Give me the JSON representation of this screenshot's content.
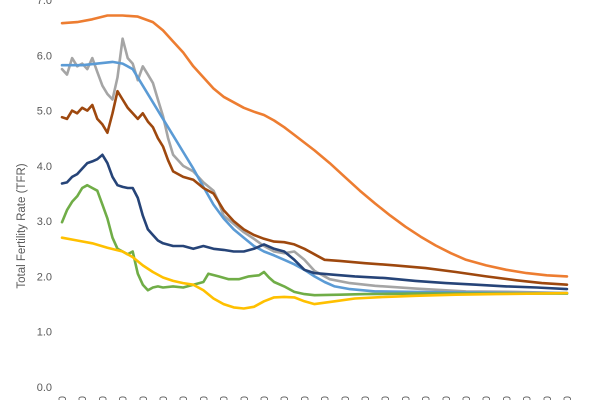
{
  "chart_data": {
    "type": "line",
    "title": "",
    "xlabel": "",
    "ylabel": "Total Fertility Rate (TFR)",
    "ylim": [
      0,
      7
    ],
    "yticks": [
      "0.0",
      "1.0",
      "2.0",
      "3.0",
      "4.0",
      "5.0",
      "6.0",
      "7.0"
    ],
    "xtick_count": 26,
    "xtick_glyph": "0",
    "grid": false,
    "legend": "none",
    "n_points": 101,
    "series": [
      {
        "color": "#ed7d31",
        "points": [
          [
            0,
            6.58
          ],
          [
            3,
            6.6
          ],
          [
            6,
            6.65
          ],
          [
            9,
            6.72
          ],
          [
            12,
            6.72
          ],
          [
            15,
            6.7
          ],
          [
            18,
            6.6
          ],
          [
            20,
            6.45
          ],
          [
            22,
            6.25
          ],
          [
            24,
            6.05
          ],
          [
            26,
            5.8
          ],
          [
            28,
            5.6
          ],
          [
            30,
            5.4
          ],
          [
            32,
            5.25
          ],
          [
            34,
            5.15
          ],
          [
            36,
            5.05
          ],
          [
            38,
            4.98
          ],
          [
            40,
            4.92
          ],
          [
            42,
            4.82
          ],
          [
            44,
            4.7
          ],
          [
            46,
            4.56
          ],
          [
            48,
            4.42
          ],
          [
            50,
            4.28
          ],
          [
            53,
            4.05
          ],
          [
            56,
            3.8
          ],
          [
            59,
            3.55
          ],
          [
            62,
            3.32
          ],
          [
            65,
            3.1
          ],
          [
            68,
            2.9
          ],
          [
            71,
            2.72
          ],
          [
            74,
            2.56
          ],
          [
            77,
            2.42
          ],
          [
            80,
            2.3
          ],
          [
            84,
            2.2
          ],
          [
            88,
            2.12
          ],
          [
            92,
            2.06
          ],
          [
            96,
            2.02
          ],
          [
            100,
            2.0
          ]
        ]
      },
      {
        "color": "#a5a5a5",
        "points": [
          [
            0,
            5.75
          ],
          [
            1,
            5.65
          ],
          [
            2,
            5.95
          ],
          [
            3,
            5.8
          ],
          [
            4,
            5.85
          ],
          [
            5,
            5.75
          ],
          [
            6,
            5.95
          ],
          [
            7,
            5.7
          ],
          [
            8,
            5.45
          ],
          [
            9,
            5.3
          ],
          [
            10,
            5.2
          ],
          [
            11,
            5.6
          ],
          [
            12,
            6.3
          ],
          [
            13,
            5.95
          ],
          [
            14,
            5.85
          ],
          [
            15,
            5.55
          ],
          [
            16,
            5.8
          ],
          [
            17,
            5.65
          ],
          [
            18,
            5.5
          ],
          [
            19,
            5.2
          ],
          [
            20,
            4.9
          ],
          [
            21,
            4.5
          ],
          [
            22,
            4.2
          ],
          [
            24,
            4.0
          ],
          [
            26,
            3.9
          ],
          [
            28,
            3.7
          ],
          [
            30,
            3.55
          ],
          [
            31,
            3.35
          ],
          [
            32,
            3.1
          ],
          [
            34,
            2.95
          ],
          [
            36,
            2.8
          ],
          [
            38,
            2.68
          ],
          [
            40,
            2.55
          ],
          [
            42,
            2.45
          ],
          [
            44,
            2.42
          ],
          [
            46,
            2.45
          ],
          [
            48,
            2.3
          ],
          [
            50,
            2.1
          ],
          [
            53,
            1.95
          ],
          [
            57,
            1.88
          ],
          [
            62,
            1.83
          ],
          [
            70,
            1.78
          ],
          [
            80,
            1.73
          ],
          [
            90,
            1.72
          ],
          [
            100,
            1.7
          ]
        ]
      },
      {
        "color": "#5b9bd5",
        "points": [
          [
            0,
            5.82
          ],
          [
            4,
            5.82
          ],
          [
            7,
            5.85
          ],
          [
            10,
            5.88
          ],
          [
            12,
            5.85
          ],
          [
            14,
            5.75
          ],
          [
            16,
            5.45
          ],
          [
            18,
            5.15
          ],
          [
            20,
            4.85
          ],
          [
            22,
            4.55
          ],
          [
            24,
            4.25
          ],
          [
            26,
            3.95
          ],
          [
            28,
            3.62
          ],
          [
            30,
            3.3
          ],
          [
            32,
            3.05
          ],
          [
            34,
            2.85
          ],
          [
            36,
            2.7
          ],
          [
            38,
            2.55
          ],
          [
            40,
            2.45
          ],
          [
            42,
            2.38
          ],
          [
            44,
            2.3
          ],
          [
            46,
            2.22
          ],
          [
            48,
            2.12
          ],
          [
            50,
            2.0
          ],
          [
            52,
            1.9
          ],
          [
            54,
            1.82
          ],
          [
            57,
            1.77
          ],
          [
            62,
            1.73
          ],
          [
            70,
            1.72
          ],
          [
            80,
            1.71
          ],
          [
            90,
            1.7
          ],
          [
            100,
            1.7
          ]
        ]
      },
      {
        "color": "#9e480e",
        "points": [
          [
            0,
            4.88
          ],
          [
            1,
            4.85
          ],
          [
            2,
            5.0
          ],
          [
            3,
            4.95
          ],
          [
            4,
            5.05
          ],
          [
            5,
            5.0
          ],
          [
            6,
            5.1
          ],
          [
            7,
            4.85
          ],
          [
            8,
            4.75
          ],
          [
            9,
            4.6
          ],
          [
            10,
            4.95
          ],
          [
            11,
            5.35
          ],
          [
            12,
            5.2
          ],
          [
            13,
            5.05
          ],
          [
            14,
            4.95
          ],
          [
            15,
            4.85
          ],
          [
            16,
            4.95
          ],
          [
            17,
            4.8
          ],
          [
            18,
            4.7
          ],
          [
            19,
            4.5
          ],
          [
            20,
            4.35
          ],
          [
            21,
            4.1
          ],
          [
            22,
            3.9
          ],
          [
            24,
            3.8
          ],
          [
            26,
            3.75
          ],
          [
            28,
            3.6
          ],
          [
            30,
            3.5
          ],
          [
            32,
            3.2
          ],
          [
            34,
            3.0
          ],
          [
            36,
            2.85
          ],
          [
            38,
            2.75
          ],
          [
            40,
            2.68
          ],
          [
            42,
            2.63
          ],
          [
            44,
            2.62
          ],
          [
            46,
            2.58
          ],
          [
            48,
            2.5
          ],
          [
            50,
            2.4
          ],
          [
            52,
            2.3
          ],
          [
            55,
            2.28
          ],
          [
            60,
            2.24
          ],
          [
            66,
            2.2
          ],
          [
            72,
            2.15
          ],
          [
            78,
            2.08
          ],
          [
            84,
            2.0
          ],
          [
            90,
            1.93
          ],
          [
            95,
            1.88
          ],
          [
            100,
            1.85
          ]
        ]
      },
      {
        "color": "#264478",
        "points": [
          [
            0,
            3.68
          ],
          [
            1,
            3.7
          ],
          [
            2,
            3.8
          ],
          [
            3,
            3.85
          ],
          [
            4,
            3.95
          ],
          [
            5,
            4.05
          ],
          [
            6,
            4.08
          ],
          [
            7,
            4.12
          ],
          [
            8,
            4.2
          ],
          [
            9,
            4.05
          ],
          [
            10,
            3.8
          ],
          [
            11,
            3.65
          ],
          [
            12,
            3.62
          ],
          [
            13,
            3.6
          ],
          [
            14,
            3.6
          ],
          [
            15,
            3.42
          ],
          [
            16,
            3.1
          ],
          [
            17,
            2.85
          ],
          [
            18,
            2.75
          ],
          [
            19,
            2.65
          ],
          [
            20,
            2.6
          ],
          [
            22,
            2.55
          ],
          [
            24,
            2.55
          ],
          [
            26,
            2.5
          ],
          [
            28,
            2.55
          ],
          [
            30,
            2.5
          ],
          [
            32,
            2.48
          ],
          [
            34,
            2.45
          ],
          [
            36,
            2.45
          ],
          [
            38,
            2.5
          ],
          [
            40,
            2.58
          ],
          [
            42,
            2.5
          ],
          [
            44,
            2.45
          ],
          [
            46,
            2.3
          ],
          [
            48,
            2.12
          ],
          [
            50,
            2.06
          ],
          [
            54,
            2.03
          ],
          [
            58,
            2.0
          ],
          [
            64,
            1.97
          ],
          [
            70,
            1.92
          ],
          [
            76,
            1.88
          ],
          [
            82,
            1.85
          ],
          [
            88,
            1.82
          ],
          [
            94,
            1.8
          ],
          [
            100,
            1.77
          ]
        ]
      },
      {
        "color": "#70ad47",
        "points": [
          [
            0,
            2.98
          ],
          [
            1,
            3.2
          ],
          [
            2,
            3.35
          ],
          [
            3,
            3.45
          ],
          [
            4,
            3.6
          ],
          [
            5,
            3.65
          ],
          [
            6,
            3.6
          ],
          [
            7,
            3.55
          ],
          [
            8,
            3.3
          ],
          [
            9,
            3.05
          ],
          [
            10,
            2.7
          ],
          [
            11,
            2.5
          ],
          [
            12,
            2.45
          ],
          [
            13,
            2.4
          ],
          [
            14,
            2.45
          ],
          [
            15,
            2.05
          ],
          [
            16,
            1.85
          ],
          [
            17,
            1.75
          ],
          [
            18,
            1.8
          ],
          [
            19,
            1.82
          ],
          [
            20,
            1.8
          ],
          [
            22,
            1.82
          ],
          [
            24,
            1.8
          ],
          [
            26,
            1.85
          ],
          [
            28,
            1.9
          ],
          [
            29,
            2.05
          ],
          [
            31,
            2.0
          ],
          [
            33,
            1.95
          ],
          [
            35,
            1.95
          ],
          [
            37,
            2.0
          ],
          [
            39,
            2.02
          ],
          [
            40,
            2.08
          ],
          [
            41,
            1.98
          ],
          [
            42,
            1.9
          ],
          [
            44,
            1.82
          ],
          [
            46,
            1.72
          ],
          [
            48,
            1.68
          ],
          [
            50,
            1.66
          ],
          [
            55,
            1.67
          ],
          [
            60,
            1.68
          ],
          [
            70,
            1.69
          ],
          [
            80,
            1.69
          ],
          [
            90,
            1.69
          ],
          [
            100,
            1.69
          ]
        ]
      },
      {
        "color": "#ffc000",
        "points": [
          [
            0,
            2.7
          ],
          [
            3,
            2.65
          ],
          [
            6,
            2.6
          ],
          [
            9,
            2.52
          ],
          [
            12,
            2.45
          ],
          [
            14,
            2.35
          ],
          [
            16,
            2.2
          ],
          [
            18,
            2.08
          ],
          [
            20,
            1.98
          ],
          [
            22,
            1.92
          ],
          [
            24,
            1.88
          ],
          [
            26,
            1.85
          ],
          [
            28,
            1.75
          ],
          [
            30,
            1.6
          ],
          [
            32,
            1.5
          ],
          [
            34,
            1.44
          ],
          [
            36,
            1.42
          ],
          [
            38,
            1.45
          ],
          [
            40,
            1.55
          ],
          [
            42,
            1.62
          ],
          [
            44,
            1.63
          ],
          [
            46,
            1.62
          ],
          [
            48,
            1.55
          ],
          [
            50,
            1.5
          ],
          [
            54,
            1.55
          ],
          [
            58,
            1.6
          ],
          [
            64,
            1.63
          ],
          [
            70,
            1.65
          ],
          [
            78,
            1.67
          ],
          [
            86,
            1.68
          ],
          [
            94,
            1.69
          ],
          [
            100,
            1.7
          ]
        ]
      }
    ]
  }
}
